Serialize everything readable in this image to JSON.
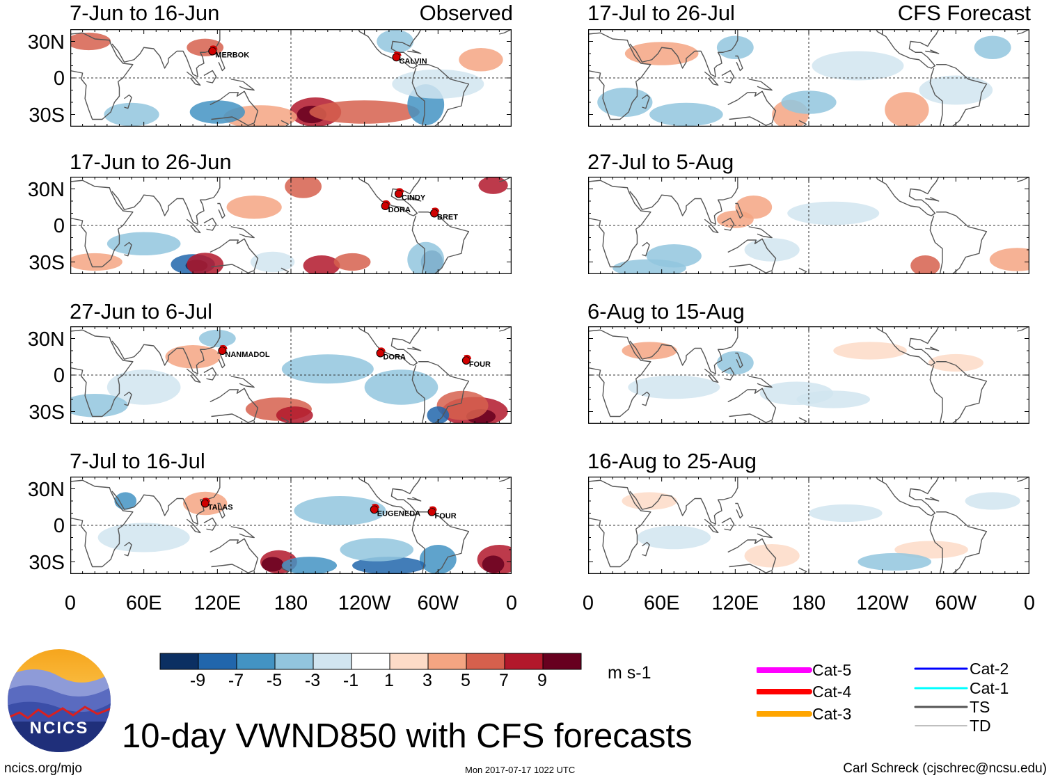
{
  "chart_data": {
    "type": "heatmap",
    "title": "10-day VWND850 with CFS forecasts",
    "variable": "850 hPa meridional wind anomaly",
    "units": "m s-1",
    "lat_ticks": [
      "30N",
      "0",
      "30S"
    ],
    "lon_ticks": [
      "0",
      "60E",
      "120E",
      "180",
      "120W",
      "60W",
      "0"
    ],
    "lat_range": [
      -40,
      40
    ],
    "lon_range": [
      0,
      360
    ],
    "colorbar": {
      "labels": [
        "-9",
        "-7",
        "-5",
        "-3",
        "-1",
        "1",
        "3",
        "5",
        "7",
        "9"
      ],
      "colors": [
        "#0b2f62",
        "#2166ac",
        "#4393c3",
        "#92c5de",
        "#d1e5f0",
        "#ffffff",
        "#fddbc7",
        "#f4a582",
        "#d6604d",
        "#b2182b",
        "#67001f"
      ]
    },
    "columns": [
      {
        "tag": "Observed",
        "panels": [
          {
            "title": "7-Jun to 16-Jun",
            "storms": [
              {
                "name": "MERBOK",
                "lon": 116,
                "lat": 22
              },
              {
                "name": "CALVIN",
                "lon": 266,
                "lat": 17
              }
            ]
          },
          {
            "title": "17-Jun to 26-Jun",
            "storms": [
              {
                "name": "CINDY",
                "lon": 268,
                "lat": 26
              },
              {
                "name": "DORA",
                "lon": 257,
                "lat": 16
              },
              {
                "name": "BRET",
                "lon": 297,
                "lat": 10
              }
            ]
          },
          {
            "title": "27-Jun to 6-Jul",
            "storms": [
              {
                "name": "NANMADOL",
                "lon": 124,
                "lat": 20
              },
              {
                "name": "DORA",
                "lon": 253,
                "lat": 18
              },
              {
                "name": "FOUR",
                "lon": 323,
                "lat": 12
              }
            ]
          },
          {
            "title": "7-Jul to 16-Jul",
            "storms": [
              {
                "name": "TALAS",
                "lon": 110,
                "lat": 18
              },
              {
                "name": "EUGENEDA",
                "lon": 248,
                "lat": 13
              },
              {
                "name": "FOUR",
                "lon": 295,
                "lat": 11
              }
            ]
          }
        ]
      },
      {
        "tag": "CFS Forecast",
        "panels": [
          {
            "title": "17-Jul to 26-Jul",
            "storms": []
          },
          {
            "title": "27-Jul to 5-Aug",
            "storms": []
          },
          {
            "title": "6-Aug to 15-Aug",
            "storms": []
          },
          {
            "title": "16-Aug to 25-Aug",
            "storms": []
          }
        ]
      }
    ],
    "legend": [
      {
        "label": "Cat-5",
        "color": "#ff00ff"
      },
      {
        "label": "Cat-4",
        "color": "#ff0000"
      },
      {
        "label": "Cat-3",
        "color": "#ffa500"
      },
      {
        "label": "Cat-2",
        "color": "#0000ff"
      },
      {
        "label": "Cat-1",
        "color": "#00ffff"
      },
      {
        "label": "TS",
        "color": "#555555"
      },
      {
        "label": "TD",
        "color": "#aaaaaa"
      }
    ]
  },
  "logo_text": "NCICS",
  "footer": {
    "left": "ncics.org/mjo",
    "center": "Mon 2017-07-17 1022 UTC",
    "right": "Carl Schreck (cjschrec@ncsu.edu)"
  }
}
